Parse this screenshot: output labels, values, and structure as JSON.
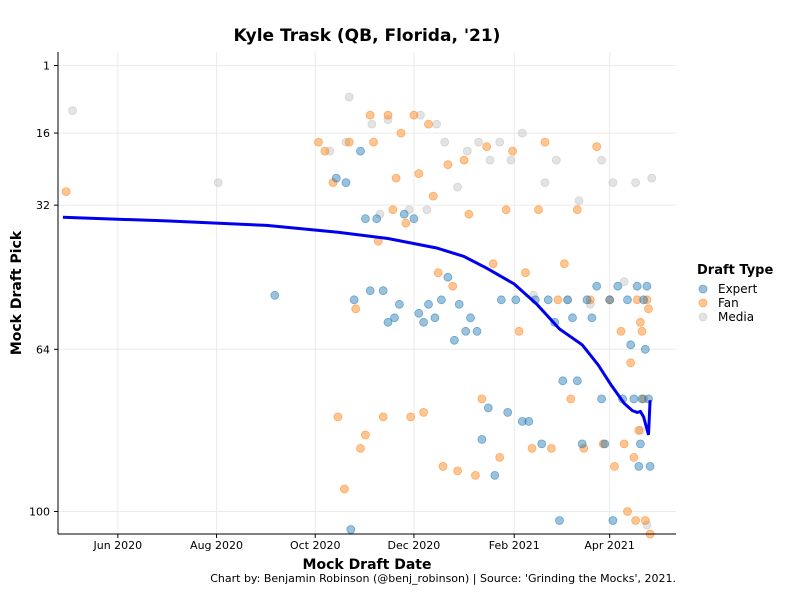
{
  "chart_data": {
    "type": "scatter",
    "title": "Kyle Trask (QB, Florida, '21)",
    "xlabel": "Mock Draft Date",
    "ylabel": "Mock Draft Pick",
    "caption": "Chart by: Benjamin Robinson (@benj_robinson) | Source: 'Grinding the Mocks', 2021.",
    "x_ticks": [
      {
        "date": "2020-06-01",
        "label": "Jun 2020"
      },
      {
        "date": "2020-08-01",
        "label": "Aug 2020"
      },
      {
        "date": "2020-10-01",
        "label": "Oct 2020"
      },
      {
        "date": "2020-12-01",
        "label": "Dec 2020"
      },
      {
        "date": "2021-02-01",
        "label": "Feb 2021"
      },
      {
        "date": "2021-04-01",
        "label": "Apr 2021"
      }
    ],
    "xlim": [
      "2020-04-25",
      "2021-05-12"
    ],
    "y_ticks": [
      {
        "value": 1,
        "label": "1"
      },
      {
        "value": 16,
        "label": "16"
      },
      {
        "value": 32,
        "label": "32"
      },
      {
        "value": 64,
        "label": "64"
      },
      {
        "value": 100,
        "label": "100"
      }
    ],
    "ylim": [
      -2,
      105
    ],
    "y_reversed": true,
    "grid": true,
    "legend": {
      "title": "Draft Type",
      "position": "right",
      "entries": [
        {
          "name": "Expert",
          "color": "#1f77b4"
        },
        {
          "name": "Fan",
          "color": "#ff7f0e"
        },
        {
          "name": "Media",
          "color": "#c0c0c0"
        }
      ]
    },
    "series": [
      {
        "name": "Expert",
        "color": "#1f77b4",
        "points": [
          [
            "2020-09-06",
            52
          ],
          [
            "2020-10-14",
            26
          ],
          [
            "2020-10-20",
            27
          ],
          [
            "2020-10-23",
            104
          ],
          [
            "2020-10-25",
            53
          ],
          [
            "2020-10-29",
            20
          ],
          [
            "2020-11-01",
            35
          ],
          [
            "2020-11-04",
            51
          ],
          [
            "2020-11-08",
            35
          ],
          [
            "2020-11-12",
            51
          ],
          [
            "2020-11-15",
            58
          ],
          [
            "2020-11-19",
            57
          ],
          [
            "2020-11-22",
            54
          ],
          [
            "2020-11-25",
            34
          ],
          [
            "2020-12-01",
            35
          ],
          [
            "2020-12-04",
            56
          ],
          [
            "2020-12-07",
            58
          ],
          [
            "2020-12-10",
            54
          ],
          [
            "2020-12-14",
            57
          ],
          [
            "2020-12-18",
            53
          ],
          [
            "2020-12-22",
            48
          ],
          [
            "2020-12-26",
            62
          ],
          [
            "2020-12-29",
            54
          ],
          [
            "2021-01-02",
            60
          ],
          [
            "2021-01-05",
            57
          ],
          [
            "2021-01-09",
            60
          ],
          [
            "2021-01-12",
            84
          ],
          [
            "2021-01-16",
            77
          ],
          [
            "2021-01-20",
            92
          ],
          [
            "2021-01-24",
            53
          ],
          [
            "2021-01-28",
            78
          ],
          [
            "2021-02-02",
            53
          ],
          [
            "2021-02-06",
            80
          ],
          [
            "2021-02-10",
            80
          ],
          [
            "2021-02-14",
            53
          ],
          [
            "2021-02-18",
            85
          ],
          [
            "2021-02-22",
            53
          ],
          [
            "2021-02-26",
            58
          ],
          [
            "2021-03-01",
            102
          ],
          [
            "2021-03-03",
            71
          ],
          [
            "2021-03-06",
            53
          ],
          [
            "2021-03-09",
            57
          ],
          [
            "2021-03-12",
            71
          ],
          [
            "2021-03-15",
            85
          ],
          [
            "2021-03-18",
            53
          ],
          [
            "2021-03-21",
            57
          ],
          [
            "2021-03-24",
            50
          ],
          [
            "2021-03-27",
            75
          ],
          [
            "2021-03-29",
            85
          ],
          [
            "2021-04-01",
            53
          ],
          [
            "2021-04-03",
            102
          ],
          [
            "2021-04-06",
            50
          ],
          [
            "2021-04-09",
            75
          ],
          [
            "2021-04-12",
            53
          ],
          [
            "2021-04-14",
            63
          ],
          [
            "2021-04-16",
            75
          ],
          [
            "2021-04-18",
            50
          ],
          [
            "2021-04-19",
            90
          ],
          [
            "2021-04-20",
            85
          ],
          [
            "2021-04-21",
            75
          ],
          [
            "2021-04-22",
            53
          ],
          [
            "2021-04-23",
            64
          ],
          [
            "2021-04-24",
            50
          ],
          [
            "2021-04-25",
            75
          ],
          [
            "2021-04-26",
            90
          ]
        ]
      },
      {
        "name": "Fan",
        "color": "#ff7f0e",
        "points": [
          [
            "2020-04-30",
            29
          ],
          [
            "2020-10-03",
            18
          ],
          [
            "2020-10-07",
            20
          ],
          [
            "2020-10-12",
            27
          ],
          [
            "2020-10-15",
            79
          ],
          [
            "2020-10-19",
            95
          ],
          [
            "2020-10-22",
            18
          ],
          [
            "2020-10-26",
            55
          ],
          [
            "2020-10-29",
            86
          ],
          [
            "2020-11-01",
            83
          ],
          [
            "2020-11-04",
            12
          ],
          [
            "2020-11-06",
            18
          ],
          [
            "2020-11-09",
            40
          ],
          [
            "2020-11-12",
            79
          ],
          [
            "2020-11-15",
            12
          ],
          [
            "2020-11-18",
            33
          ],
          [
            "2020-11-20",
            26
          ],
          [
            "2020-11-23",
            16
          ],
          [
            "2020-11-26",
            36
          ],
          [
            "2020-11-29",
            79
          ],
          [
            "2020-12-01",
            12
          ],
          [
            "2020-12-04",
            25
          ],
          [
            "2020-12-07",
            78
          ],
          [
            "2020-12-10",
            14
          ],
          [
            "2020-12-13",
            30
          ],
          [
            "2020-12-16",
            47
          ],
          [
            "2020-12-19",
            90
          ],
          [
            "2020-12-22",
            23
          ],
          [
            "2020-12-25",
            50
          ],
          [
            "2020-12-28",
            91
          ],
          [
            "2021-01-01",
            22
          ],
          [
            "2021-01-04",
            34
          ],
          [
            "2021-01-08",
            92
          ],
          [
            "2021-01-12",
            75
          ],
          [
            "2021-01-15",
            19
          ],
          [
            "2021-01-19",
            45
          ],
          [
            "2021-01-23",
            88
          ],
          [
            "2021-01-27",
            33
          ],
          [
            "2021-01-31",
            20
          ],
          [
            "2021-02-04",
            60
          ],
          [
            "2021-02-08",
            47
          ],
          [
            "2021-02-12",
            86
          ],
          [
            "2021-02-16",
            33
          ],
          [
            "2021-02-20",
            18
          ],
          [
            "2021-02-24",
            86
          ],
          [
            "2021-02-28",
            53
          ],
          [
            "2021-03-04",
            45
          ],
          [
            "2021-03-08",
            75
          ],
          [
            "2021-03-12",
            33
          ],
          [
            "2021-03-16",
            86
          ],
          [
            "2021-03-20",
            53
          ],
          [
            "2021-03-24",
            19
          ],
          [
            "2021-03-28",
            85
          ],
          [
            "2021-04-01",
            53
          ],
          [
            "2021-04-04",
            90
          ],
          [
            "2021-04-08",
            60
          ],
          [
            "2021-04-10",
            85
          ],
          [
            "2021-04-12",
            100
          ],
          [
            "2021-04-14",
            67
          ],
          [
            "2021-04-16",
            88
          ],
          [
            "2021-04-17",
            102
          ],
          [
            "2021-04-18",
            53
          ],
          [
            "2021-04-19",
            82
          ],
          [
            "2021-04-20",
            58
          ],
          [
            "2021-04-21",
            60
          ],
          [
            "2021-04-22",
            75
          ],
          [
            "2021-04-23",
            102
          ],
          [
            "2021-04-24",
            53
          ],
          [
            "2021-04-25",
            55
          ],
          [
            "2021-04-26",
            105
          ]
        ]
      },
      {
        "name": "Media",
        "color": "#c0c0c0",
        "points": [
          [
            "2020-05-04",
            11
          ],
          [
            "2020-08-02",
            27
          ],
          [
            "2020-10-10",
            20
          ],
          [
            "2020-10-20",
            18
          ],
          [
            "2020-10-22",
            8
          ],
          [
            "2020-11-05",
            14
          ],
          [
            "2020-11-10",
            34
          ],
          [
            "2020-11-15",
            13
          ],
          [
            "2020-11-28",
            33
          ],
          [
            "2020-12-05",
            12
          ],
          [
            "2020-12-09",
            33
          ],
          [
            "2020-12-15",
            14
          ],
          [
            "2020-12-20",
            18
          ],
          [
            "2020-12-28",
            28
          ],
          [
            "2021-01-03",
            20
          ],
          [
            "2021-01-10",
            18
          ],
          [
            "2021-01-17",
            22
          ],
          [
            "2021-01-23",
            18
          ],
          [
            "2021-01-30",
            22
          ],
          [
            "2021-02-06",
            16
          ],
          [
            "2021-02-13",
            52
          ],
          [
            "2021-02-20",
            27
          ],
          [
            "2021-02-27",
            22
          ],
          [
            "2021-03-06",
            53
          ],
          [
            "2021-03-13",
            31
          ],
          [
            "2021-03-20",
            54
          ],
          [
            "2021-03-27",
            22
          ],
          [
            "2021-04-03",
            27
          ],
          [
            "2021-04-10",
            49
          ],
          [
            "2021-04-17",
            27
          ],
          [
            "2021-04-20",
            82
          ],
          [
            "2021-04-24",
            103
          ],
          [
            "2021-04-27",
            26
          ]
        ]
      }
    ],
    "trend_line": {
      "color": "#0000ee",
      "points": [
        [
          "2020-04-28",
          34.7
        ],
        [
          "2020-07-01",
          35.5
        ],
        [
          "2020-09-01",
          36.5
        ],
        [
          "2020-10-15",
          38.0
        ],
        [
          "2020-11-15",
          39.4
        ],
        [
          "2020-12-15",
          41.5
        ],
        [
          "2021-01-01",
          43.4
        ],
        [
          "2021-01-15",
          46.0
        ],
        [
          "2021-02-01",
          49.5
        ],
        [
          "2021-02-15",
          54.0
        ],
        [
          "2021-03-01",
          59.5
        ],
        [
          "2021-03-15",
          63.0
        ],
        [
          "2021-03-25",
          67.5
        ],
        [
          "2021-04-02",
          72.0
        ],
        [
          "2021-04-10",
          76.0
        ],
        [
          "2021-04-15",
          77.6
        ],
        [
          "2021-04-18",
          78.0
        ],
        [
          "2021-04-20",
          77.8
        ],
        [
          "2021-04-22",
          79.0
        ],
        [
          "2021-04-25",
          83.0
        ],
        [
          "2021-04-26",
          75.3
        ]
      ]
    }
  }
}
